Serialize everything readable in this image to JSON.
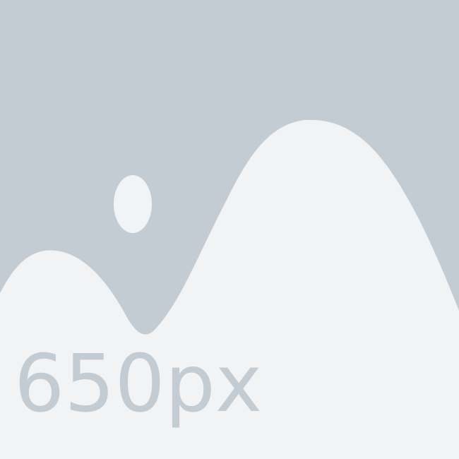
{
  "placeholder": {
    "text": "650px",
    "icon": "image-placeholder-icon",
    "colors": {
      "background": "#c3cbd3",
      "foreground": "#f1f3f5",
      "text": "#c3cbd3"
    }
  }
}
